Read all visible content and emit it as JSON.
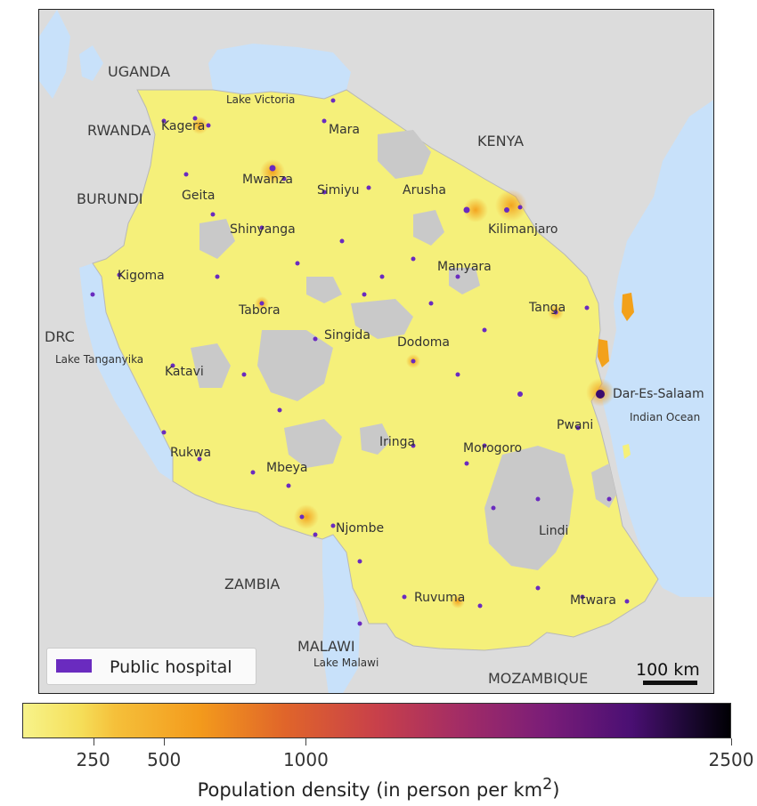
{
  "colors": {
    "land_outside": "#dcdcdc",
    "water": "#c8e1fa",
    "density_low": "#f5f07a",
    "density_mid": "#f3a11a",
    "density_high": "#6d1f80",
    "density_max": "#000004",
    "no_data": "#c9c9c9",
    "hospital": "#6a2bbf"
  },
  "countries": {
    "uganda": "UGANDA",
    "rwanda": "RWANDA",
    "burundi": "BURUNDI",
    "kenya": "KENYA",
    "drc": "DRC",
    "zambia": "ZAMBIA",
    "malawi": "MALAWI",
    "mozambique": "MOZAMBIQUE"
  },
  "water_bodies": {
    "lake_victoria": "Lake Victoria",
    "lake_tanganyika": "Lake Tanganyika",
    "lake_malawi": "Lake Malawi",
    "indian_ocean": "Indian Ocean"
  },
  "regions": {
    "kagera": "Kagera",
    "mara": "Mara",
    "mwanza": "Mwanza",
    "geita": "Geita",
    "simiyu": "Simiyu",
    "arusha": "Arusha",
    "shinyanga": "Shinyanga",
    "kilimanjaro": "Kilimanjaro",
    "kigoma": "Kigoma",
    "manyara": "Manyara",
    "tabora": "Tabora",
    "tanga": "Tanga",
    "singida": "Singida",
    "dodoma": "Dodoma",
    "katavi": "Katavi",
    "dar_es_salaam": "Dar-Es-Salaam",
    "pwani": "Pwani",
    "iringa": "Iringa",
    "morogoro": "Morogoro",
    "rukwa": "Rukwa",
    "mbeya": "Mbeya",
    "njombe": "Njombe",
    "lindi": "Lindi",
    "ruvuma": "Ruvuma",
    "mtwara": "Mtwara"
  },
  "legend": {
    "label": "Public hospital"
  },
  "scale_bar": {
    "label": "100 km"
  },
  "colorbar": {
    "title": "Population density (in person per km",
    "title_sup": "2",
    "title_close": ")",
    "min": 0,
    "max": 2500,
    "ticks": [
      {
        "value": 250,
        "label": "250"
      },
      {
        "value": 500,
        "label": "500"
      },
      {
        "value": 1000,
        "label": "1000"
      },
      {
        "value": 2500,
        "label": "2500"
      }
    ]
  }
}
